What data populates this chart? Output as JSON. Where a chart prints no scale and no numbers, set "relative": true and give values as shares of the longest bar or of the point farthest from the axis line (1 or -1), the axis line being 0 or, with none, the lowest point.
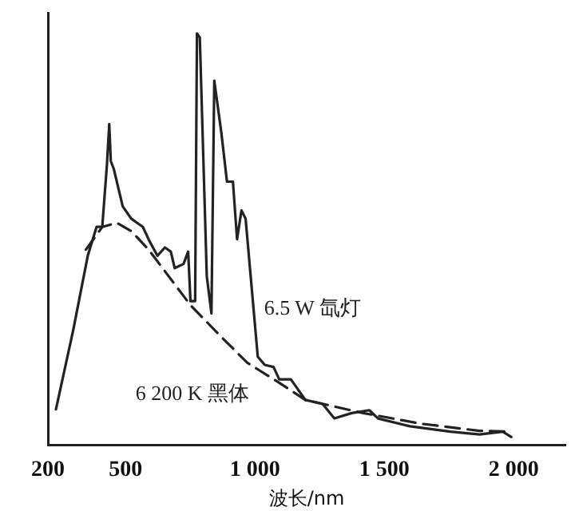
{
  "chart_data": {
    "type": "line",
    "relative": true,
    "xlabel": "波长/nm",
    "xlim": [
      200,
      2200
    ],
    "xticks": [
      200,
      500,
      {
        "value": 1000,
        "label": "1 000"
      },
      {
        "value": 1500,
        "label": "1 500"
      },
      {
        "value": 2000,
        "label": "2 000"
      }
    ],
    "grid": false,
    "legend": false,
    "marker": "none",
    "series": [
      {
        "name": "6.5 W 氙灯",
        "color": "#222222",
        "line_style": "solid",
        "x": [
          231,
          298,
          354,
          388,
          410,
          428,
          437,
          443,
          455,
          489,
          522,
          567,
          589,
          623,
          652,
          675,
          690,
          724,
          742,
          751,
          769,
          776,
          787,
          814,
          832,
          843,
          870,
          892,
          915,
          931,
          948,
          964,
          1011,
          1038,
          1072,
          1094,
          1139,
          1195,
          1262,
          1307,
          1374,
          1442,
          1476,
          1599,
          1756,
          1868,
          1958,
          1991
        ],
        "values": [
          0.087,
          0.28,
          0.46,
          0.53,
          0.53,
          0.68,
          0.78,
          0.69,
          0.67,
          0.58,
          0.55,
          0.53,
          0.5,
          0.46,
          0.48,
          0.47,
          0.43,
          0.44,
          0.47,
          0.35,
          0.35,
          1.0,
          0.99,
          0.41,
          0.32,
          0.885,
          0.76,
          0.64,
          0.64,
          0.5,
          0.57,
          0.55,
          0.215,
          0.195,
          0.19,
          0.16,
          0.16,
          0.11,
          0.1,
          0.065,
          0.078,
          0.085,
          0.065,
          0.046,
          0.033,
          0.026,
          0.033,
          0.02
        ]
      },
      {
        "name": "6 200 K 黑体",
        "color": "#222222",
        "line_style": "dashed",
        "x": [
          347,
          410,
          466,
          522,
          589,
          679,
          751,
          859,
          971,
          1083,
          1195,
          1419,
          1644,
          1868,
          1980
        ],
        "values": [
          0.475,
          0.53,
          0.54,
          0.52,
          0.475,
          0.4,
          0.34,
          0.27,
          0.2,
          0.156,
          0.11,
          0.078,
          0.052,
          0.035,
          0.033
        ]
      }
    ]
  }
}
